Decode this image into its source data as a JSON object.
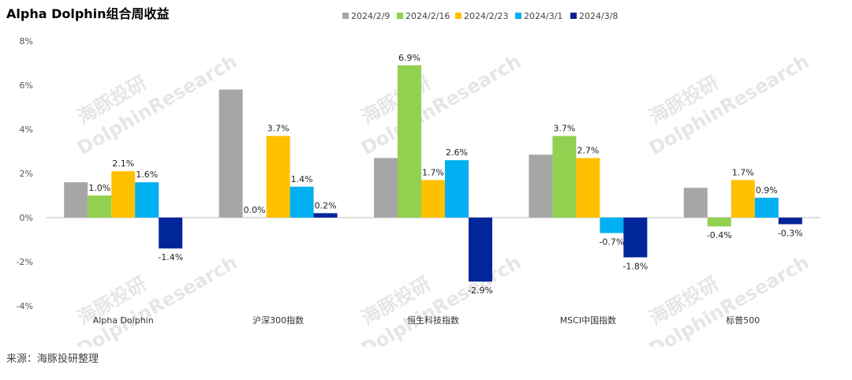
{
  "title": "Alpha Dolphin组合周收益",
  "source": "来源：海豚投研整理",
  "watermark": {
    "cn": "海豚投研",
    "en": "DolphinResearch"
  },
  "colors": [
    "#a6a6a6",
    "#92d050",
    "#ffc000",
    "#00b0f0",
    "#002699"
  ],
  "chart_data": {
    "type": "bar",
    "title": "Alpha Dolphin组合周收益",
    "categories": [
      "Alpha Dolphin",
      "沪深300指数",
      "恒生科技指数",
      "MSCI中国指数",
      "标普500"
    ],
    "series": [
      {
        "name": "2024/2/9",
        "values": [
          1.6,
          5.8,
          2.7,
          2.85,
          1.35
        ],
        "labels": [
          "",
          "",
          "",
          "",
          ""
        ]
      },
      {
        "name": "2024/2/16",
        "values": [
          1.0,
          0.0,
          6.9,
          3.7,
          -0.4
        ],
        "labels": [
          "1.0%",
          "0.0%",
          "6.9%",
          "3.7%",
          "-0.4%"
        ]
      },
      {
        "name": "2024/2/23",
        "values": [
          2.1,
          3.7,
          1.7,
          2.7,
          1.7
        ],
        "labels": [
          "2.1%",
          "3.7%",
          "1.7%",
          "2.7%",
          "1.7%"
        ]
      },
      {
        "name": "2024/3/1",
        "values": [
          1.6,
          1.4,
          2.6,
          -0.7,
          0.9
        ],
        "labels": [
          "1.6%",
          "1.4%",
          "2.6%",
          "-0.7%",
          "0.9%"
        ]
      },
      {
        "name": "2024/3/8",
        "values": [
          -1.4,
          0.2,
          -2.9,
          -1.8,
          -0.3
        ],
        "labels": [
          "-1.4%",
          "0.2%",
          "-2.9%",
          "-1.8%",
          "-0.3%"
        ]
      }
    ],
    "yticks": [
      "8%",
      "6%",
      "4%",
      "2%",
      "0%",
      "-2%",
      "-4%"
    ],
    "ylim": [
      -4,
      8
    ],
    "xlabel": "",
    "ylabel": "",
    "grid": false,
    "legend": "top-center"
  }
}
